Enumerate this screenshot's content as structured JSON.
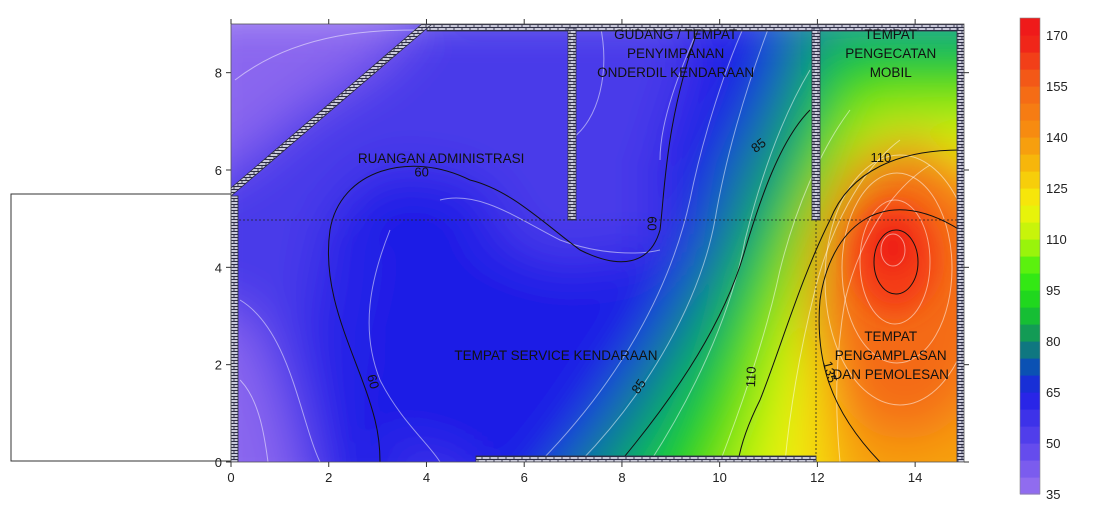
{
  "chart_data": {
    "type": "heatmap",
    "title": "",
    "xlabel": "",
    "ylabel": "",
    "xlim": [
      0,
      15
    ],
    "ylim": [
      0,
      9
    ],
    "x_ticks": [
      "0",
      "2",
      "4",
      "6",
      "8",
      "10",
      "12",
      "14"
    ],
    "y_ticks": [
      "0",
      "2",
      "4",
      "6",
      "8"
    ],
    "colorbar": {
      "min": 35,
      "max": 175,
      "step": 5,
      "ticks": [
        "170",
        "155",
        "140",
        "125",
        "110",
        "95",
        "80",
        "65",
        "50",
        "35"
      ],
      "colors": {
        "35": "#9b74f0",
        "50": "#5a44ec",
        "65": "#1f1fe6",
        "72": "#0b4db8",
        "80": "#118a66",
        "90": "#17cf23",
        "100": "#3cf00f",
        "110": "#b8f50a",
        "120": "#f6f20a",
        "130": "#f7c20a",
        "140": "#f7930f",
        "155": "#f46416",
        "170": "#ef1a1a"
      }
    },
    "hotspot": {
      "x": 13.6,
      "y": 4.3,
      "value": 175
    },
    "contour_labels": [
      {
        "text": "60",
        "x": 3.9,
        "y": 5.95,
        "angle": 0
      },
      {
        "text": "60",
        "x": 8.6,
        "y": 4.9,
        "angle": 90
      },
      {
        "text": "60",
        "x": 2.9,
        "y": 1.65,
        "angle": 75
      },
      {
        "text": "85",
        "x": 10.8,
        "y": 6.5,
        "angle": -38
      },
      {
        "text": "85",
        "x": 8.35,
        "y": 1.55,
        "angle": -55
      },
      {
        "text": "110",
        "x": 13.3,
        "y": 6.25,
        "angle": 0
      },
      {
        "text": "110",
        "x": 10.65,
        "y": 1.75,
        "angle": -88
      },
      {
        "text": "135",
        "x": 12.25,
        "y": 1.85,
        "angle": 75
      }
    ],
    "rooms": [
      {
        "lines": [
          "RUANGAN ADMINISTRASI"
        ],
        "x": 4.3,
        "y": 6.25
      },
      {
        "lines": [
          "GUDANG / TEMPAT",
          "PENYIMPANAN",
          "ONDERDIL KENDARAAN"
        ],
        "x": 9.1,
        "y": 8.4
      },
      {
        "lines": [
          "TEMPAT",
          "PENGECATAN",
          "MOBIL"
        ],
        "x": 13.5,
        "y": 8.4
      },
      {
        "lines": [
          "TEMPAT SERVICE KENDARAAN"
        ],
        "x": 6.65,
        "y": 2.2
      },
      {
        "lines": [
          "TEMPAT",
          "PENGAMPLASAN",
          "DAN PEMOLESAN"
        ],
        "x": 13.5,
        "y": 2.2
      }
    ]
  }
}
